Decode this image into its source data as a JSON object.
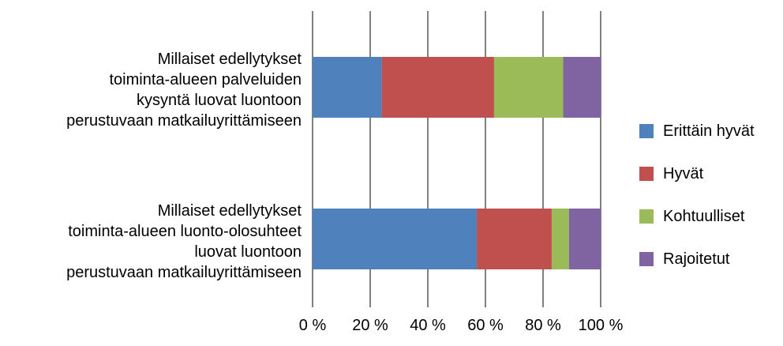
{
  "chart_data": {
    "type": "bar",
    "orientation": "horizontal",
    "stacked": "percent",
    "categories": [
      [
        "Millaiset edellytykset",
        "toiminta-alueen palveluiden",
        "kysyntä luovat luontoon",
        "perustuvaan matkailuyrittämiseen"
      ],
      [
        "Millaiset edellytykset",
        "toiminta-alueen luonto-olosuhteet",
        "luovat luontoon",
        "perustuvaan matkailuyrittämiseen"
      ]
    ],
    "series": [
      {
        "name": "Erittäin hyvät",
        "color": "#4F81BD",
        "values": [
          24,
          57
        ]
      },
      {
        "name": "Hyvät",
        "color": "#C0504D",
        "values": [
          39,
          26
        ]
      },
      {
        "name": "Kohtuulliset",
        "color": "#9BBB59",
        "values": [
          24,
          6
        ]
      },
      {
        "name": "Rajoitetut",
        "color": "#8064A2",
        "values": [
          13,
          11
        ]
      }
    ],
    "xlim": [
      0,
      100
    ],
    "xticks": [
      "0 %",
      "20 %",
      "40 %",
      "60 %",
      "80 %",
      "100 %"
    ],
    "grid": true,
    "legend_position": "right"
  }
}
